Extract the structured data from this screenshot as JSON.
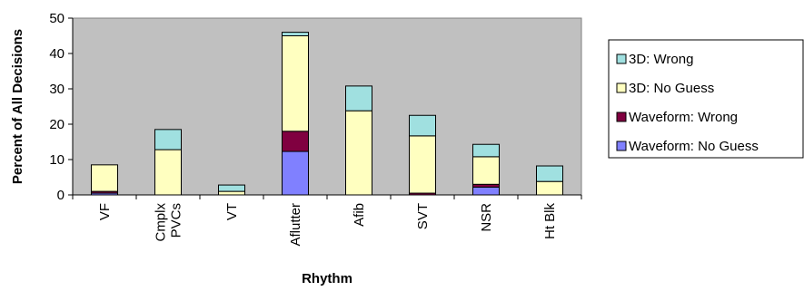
{
  "chart_data": {
    "type": "bar",
    "stacked": true,
    "categories": [
      "VF",
      "Cmplx\nPVCs",
      "VT",
      "Aflutter",
      "Afib",
      "SVT",
      "NSR",
      "Ht Blk"
    ],
    "series": [
      {
        "name": "Waveform: No Guess",
        "color": "#8080ff",
        "values": [
          0.5,
          0,
          0,
          12.3,
          0,
          0,
          2.2,
          0
        ]
      },
      {
        "name": "Waveform: Wrong",
        "color": "#800040",
        "values": [
          0.5,
          0,
          0,
          5.7,
          0,
          0.5,
          0.8,
          0
        ]
      },
      {
        "name": "3D: No Guess",
        "color": "#ffffc0",
        "values": [
          7.5,
          12.8,
          1.0,
          27.0,
          23.8,
          16.2,
          7.8,
          3.8
        ]
      },
      {
        "name": "3D: Wrong",
        "color": "#a0e0e0",
        "values": [
          0,
          5.7,
          1.8,
          1.0,
          7.0,
          5.8,
          3.5,
          4.4
        ]
      }
    ],
    "ylabel": "Percent of All Decisions",
    "xlabel": "Rhythm",
    "ylim": [
      0,
      50
    ],
    "yticks": [
      0,
      10,
      20,
      30,
      40,
      50
    ],
    "plot_background": "#c0c0c0",
    "grid": false,
    "legend_position": "right",
    "legend_order": [
      "3D: Wrong",
      "3D: No Guess",
      "Waveform: Wrong",
      "Waveform: No Guess"
    ]
  }
}
